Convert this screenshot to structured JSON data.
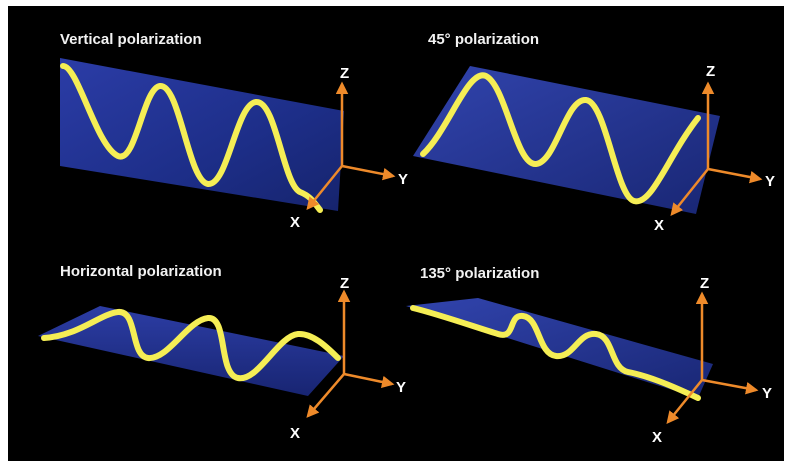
{
  "figure": {
    "panels": [
      {
        "id": "vertical",
        "title": "Vertical polarization",
        "axes": {
          "z": "Z",
          "y": "Y",
          "x": "X"
        }
      },
      {
        "id": "45",
        "title": "45° polarization",
        "axes": {
          "z": "Z",
          "y": "Y",
          "x": "X"
        }
      },
      {
        "id": "horizontal",
        "title": "Horizontal polarization",
        "axes": {
          "z": "Z",
          "y": "Y",
          "x": "X"
        }
      },
      {
        "id": "135",
        "title": "135° polarization",
        "axes": {
          "z": "Z",
          "y": "Y",
          "x": "X"
        }
      }
    ]
  },
  "colors": {
    "background": "#000000",
    "plane": "#2a3fb0",
    "wave": "#f5ee55",
    "axis": "#ee8a2a",
    "text": "#ffffff"
  }
}
